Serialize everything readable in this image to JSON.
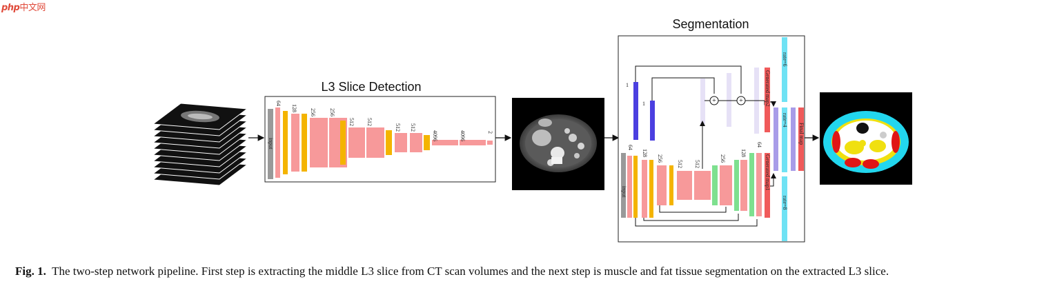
{
  "watermark": {
    "brand": "php",
    "site": "中文网"
  },
  "detection": {
    "title": "L3 Slice Detection",
    "input_label": "input",
    "channel_labels": [
      "64",
      "128",
      "256",
      "256",
      "512",
      "512",
      "512",
      "512",
      "4096",
      "4096",
      "2"
    ]
  },
  "segmentation": {
    "title": "Segmentation",
    "input_label": "input",
    "encoder_labels": [
      "64",
      "128",
      "256",
      "512",
      "512"
    ],
    "decoder_labels": [
      "256",
      "128",
      "64"
    ],
    "top_labels": [
      "1",
      "1"
    ],
    "generated_map1": "Generated map1",
    "generated_map2": "Generated map2",
    "rates": [
      "rate=6",
      "rate=4",
      "rate=8"
    ],
    "final_map": "Final map"
  },
  "colors": {
    "conv": "#f7999a",
    "pool": "#f4b400",
    "input": "#999999",
    "upsample": "#7ee08f",
    "map": "#f05a5a",
    "rate": "#6fe2f4",
    "blue": "#4b3fe0",
    "lavender": "#e6e1f6",
    "lilac": "#a89ce8"
  },
  "caption": {
    "label": "Fig. 1.",
    "text": "The two-step network pipeline. First step is extracting the middle L3 slice from CT scan volumes and the next step is muscle and fat tissue segmentation on the extracted L3 slice."
  }
}
